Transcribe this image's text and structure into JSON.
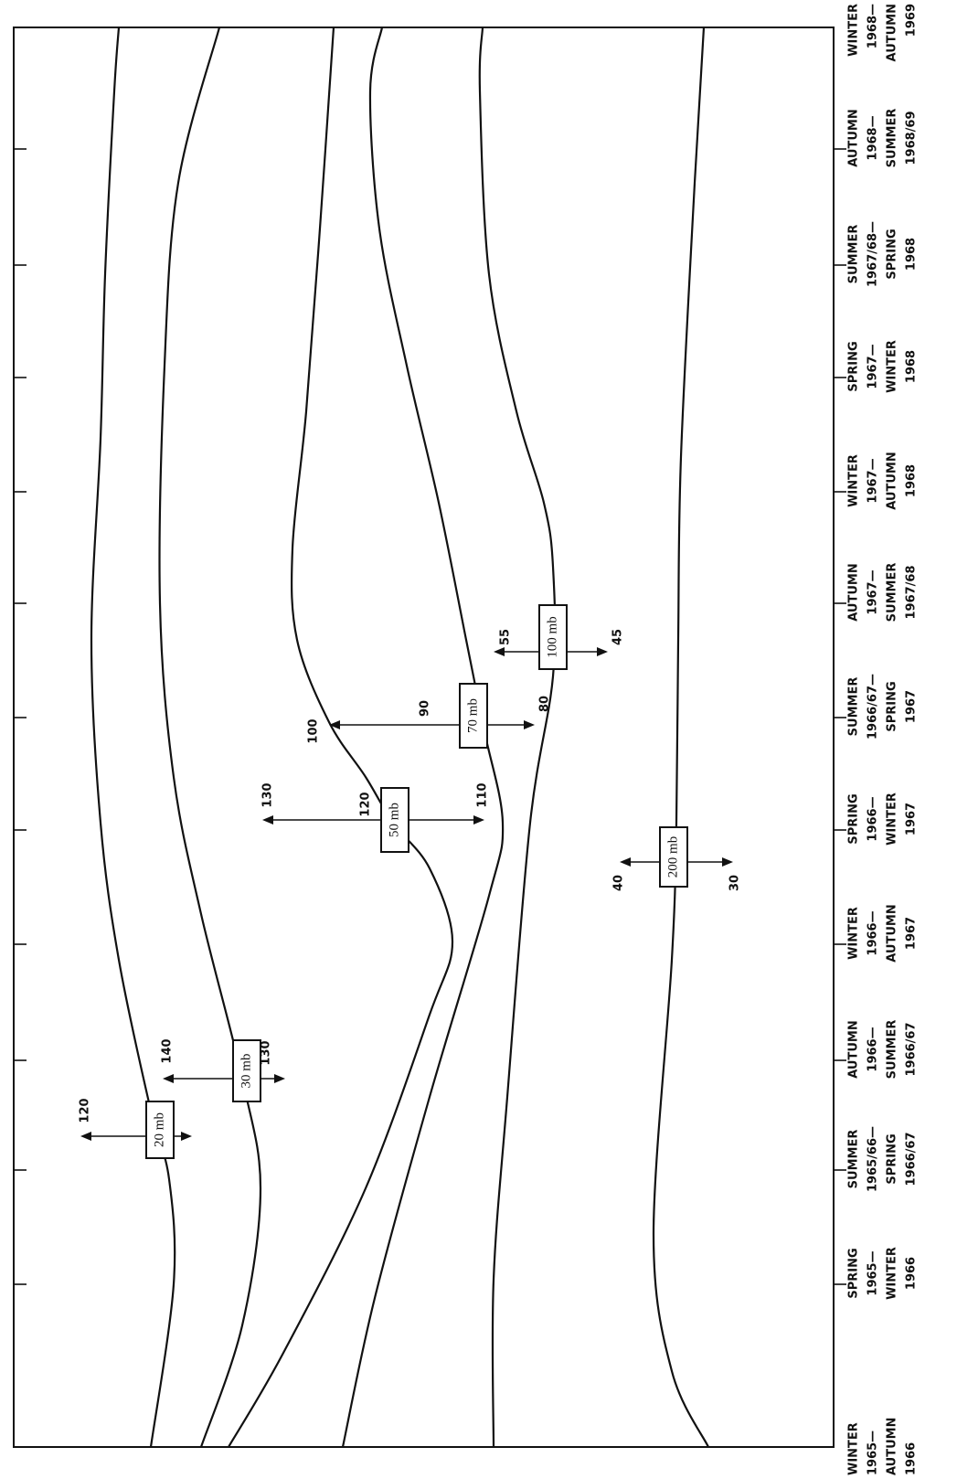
{
  "periods": [
    {
      "lines": [
        "WINTER",
        "1965—",
        "AUTUMN",
        "1966"
      ]
    },
    {
      "lines": [
        "SPRING",
        "1965—",
        "WINTER",
        "1966"
      ]
    },
    {
      "lines": [
        "SUMMER",
        "1965/66—",
        "SPRING",
        "1966/67"
      ]
    },
    {
      "lines": [
        "AUTUMN",
        "1966—",
        "SUMMER",
        "1966/67"
      ]
    },
    {
      "lines": [
        "WINTER",
        "1966—",
        "AUTUMN",
        "1967"
      ]
    },
    {
      "lines": [
        "SPRING",
        "1966—",
        "WINTER",
        "1967"
      ]
    },
    {
      "lines": [
        "SUMMER",
        "1966/67—",
        "SPRING",
        "1967"
      ]
    },
    {
      "lines": [
        "AUTUMN",
        "1967—",
        "SUMMER",
        "1967/68"
      ]
    },
    {
      "lines": [
        "WINTER",
        "1967—",
        "AUTUMN",
        "1968"
      ]
    },
    {
      "lines": [
        "SPRING",
        "1967—",
        "WINTER",
        "1968"
      ]
    },
    {
      "lines": [
        "SUMMER",
        "1967/68—",
        "SPRING",
        "1968"
      ]
    },
    {
      "lines": [
        "AUTUMN",
        "1968—",
        "SUMMER",
        "1968/69"
      ]
    },
    {
      "lines": [
        "WINTER",
        "1968—",
        "AUTUMN",
        "1969"
      ]
    }
  ],
  "levels": [
    {
      "label": "20 mb",
      "values": [
        120
      ]
    },
    {
      "label": "30 mb",
      "values": [
        140,
        130
      ]
    },
    {
      "label": "50 mb",
      "values": [
        130,
        120,
        110
      ]
    },
    {
      "label": "70 mb",
      "values": [
        100,
        90,
        80
      ]
    },
    {
      "label": "100 mb",
      "values": [
        55,
        45
      ]
    },
    {
      "label": "200 mb",
      "values": [
        40,
        30
      ]
    }
  ]
}
